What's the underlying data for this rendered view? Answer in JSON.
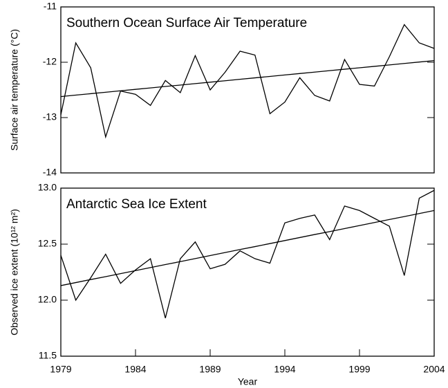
{
  "chart_data": [
    {
      "type": "line",
      "title": "Southern Ocean Surface Air Temperature",
      "y_label": "Surface air temperature (°C)",
      "x": [
        1979,
        1980,
        1981,
        1982,
        1983,
        1984,
        1985,
        1986,
        1987,
        1988,
        1989,
        1990,
        1991,
        1992,
        1993,
        1994,
        1995,
        1996,
        1997,
        1998,
        1999,
        2000,
        2001,
        2002,
        2003,
        2004
      ],
      "series": [
        {
          "color": "#000000",
          "values": [
            -12.95,
            -11.65,
            -12.1,
            -13.35,
            -12.52,
            -12.58,
            -12.78,
            -12.33,
            -12.55,
            -11.88,
            -12.5,
            -12.18,
            -11.8,
            -11.87,
            -12.93,
            -12.72,
            -12.28,
            -12.6,
            -12.7,
            -11.95,
            -12.4,
            -12.43,
            -11.9,
            -11.32,
            -11.65,
            -11.75
          ]
        },
        {
          "color": "#000000",
          "values": [
            -12.62,
            -12.594,
            -12.568,
            -12.542,
            -12.516,
            -12.49,
            -12.464,
            -12.438,
            -12.412,
            -12.386,
            -12.36,
            -12.334,
            -12.308,
            -12.282,
            -12.256,
            -12.23,
            -12.204,
            -12.178,
            -12.152,
            -12.126,
            -12.1,
            -12.074,
            -12.048,
            -12.022,
            -11.996,
            -11.97
          ]
        }
      ],
      "xlim": [
        1979,
        2004
      ],
      "ylim": [
        -14,
        -11
      ],
      "yticks": [
        -14,
        -13,
        -12,
        -11
      ]
    },
    {
      "type": "line",
      "title": "Antarctic Sea Ice Extent",
      "y_label": "Observed ice extent (10¹² m²)",
      "x_label": "Year",
      "x": [
        1979,
        1980,
        1981,
        1982,
        1983,
        1984,
        1985,
        1986,
        1987,
        1988,
        1989,
        1990,
        1991,
        1992,
        1993,
        1994,
        1995,
        1996,
        1997,
        1998,
        1999,
        2000,
        2001,
        2002,
        2003,
        2004
      ],
      "series": [
        {
          "color": "#000000",
          "values": [
            12.4,
            12.0,
            12.2,
            12.41,
            12.15,
            12.27,
            12.37,
            11.84,
            12.37,
            12.52,
            12.28,
            12.32,
            12.44,
            12.37,
            12.33,
            12.69,
            12.73,
            12.76,
            12.54,
            12.84,
            12.8,
            12.73,
            12.66,
            12.22,
            12.91,
            12.98
          ]
        },
        {
          "color": "#000000",
          "values": [
            12.13,
            12.157,
            12.184,
            12.21,
            12.237,
            12.264,
            12.291,
            12.318,
            12.344,
            12.371,
            12.398,
            12.425,
            12.452,
            12.478,
            12.505,
            12.532,
            12.559,
            12.586,
            12.612,
            12.639,
            12.666,
            12.693,
            12.72,
            12.746,
            12.773,
            12.8
          ]
        }
      ],
      "xlim": [
        1979,
        2004
      ],
      "xticks": [
        1979,
        1984,
        1989,
        1994,
        1999,
        2004
      ],
      "ylim": [
        11.5,
        13.0
      ],
      "yticks": [
        11.5,
        {
          "value": 12.0,
          "label": "12.0"
        },
        12.5,
        {
          "value": 13.0,
          "label": "13.0"
        }
      ]
    }
  ]
}
